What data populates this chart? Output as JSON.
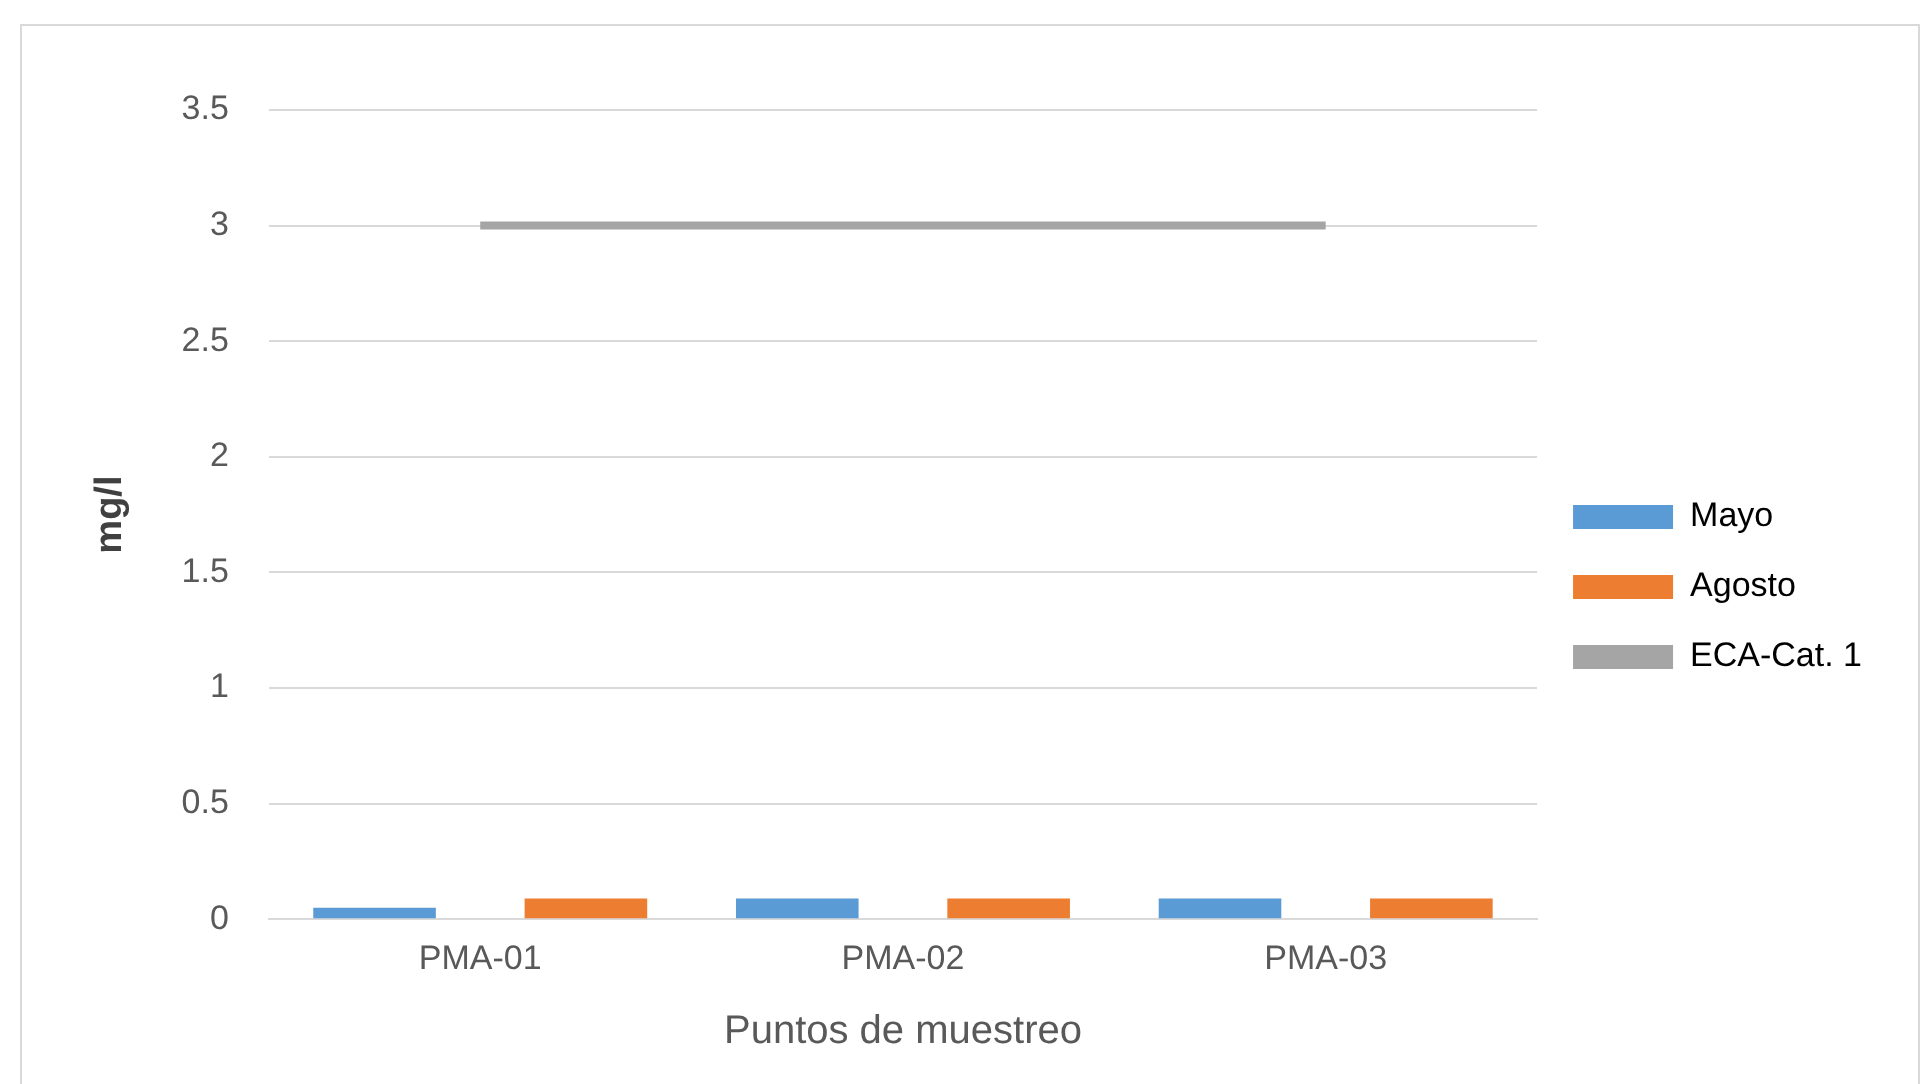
{
  "chart_data": {
    "type": "bar",
    "xlabel": "Puntos de muestreo",
    "ylabel": "mg/l",
    "categories": [
      "PMA-01",
      "PMA-02",
      "PMA-03"
    ],
    "series": [
      {
        "name": "Mayo",
        "color": "#5b9bd5",
        "values": [
          0.05,
          0.09,
          0.09
        ]
      },
      {
        "name": "Agosto",
        "color": "#ed7d31",
        "values": [
          0.09,
          0.09,
          0.09
        ]
      },
      {
        "name": "ECA-Cat. 1",
        "type": "line",
        "color": "#a5a5a5",
        "values": [
          3,
          3,
          3
        ]
      }
    ],
    "ylim": [
      0,
      3.5
    ],
    "yticks": [
      0,
      0.5,
      1,
      1.5,
      2,
      2.5,
      3,
      3.5
    ],
    "grid": "y",
    "legend": "right",
    "marker": "none",
    "line_style": "solid"
  }
}
